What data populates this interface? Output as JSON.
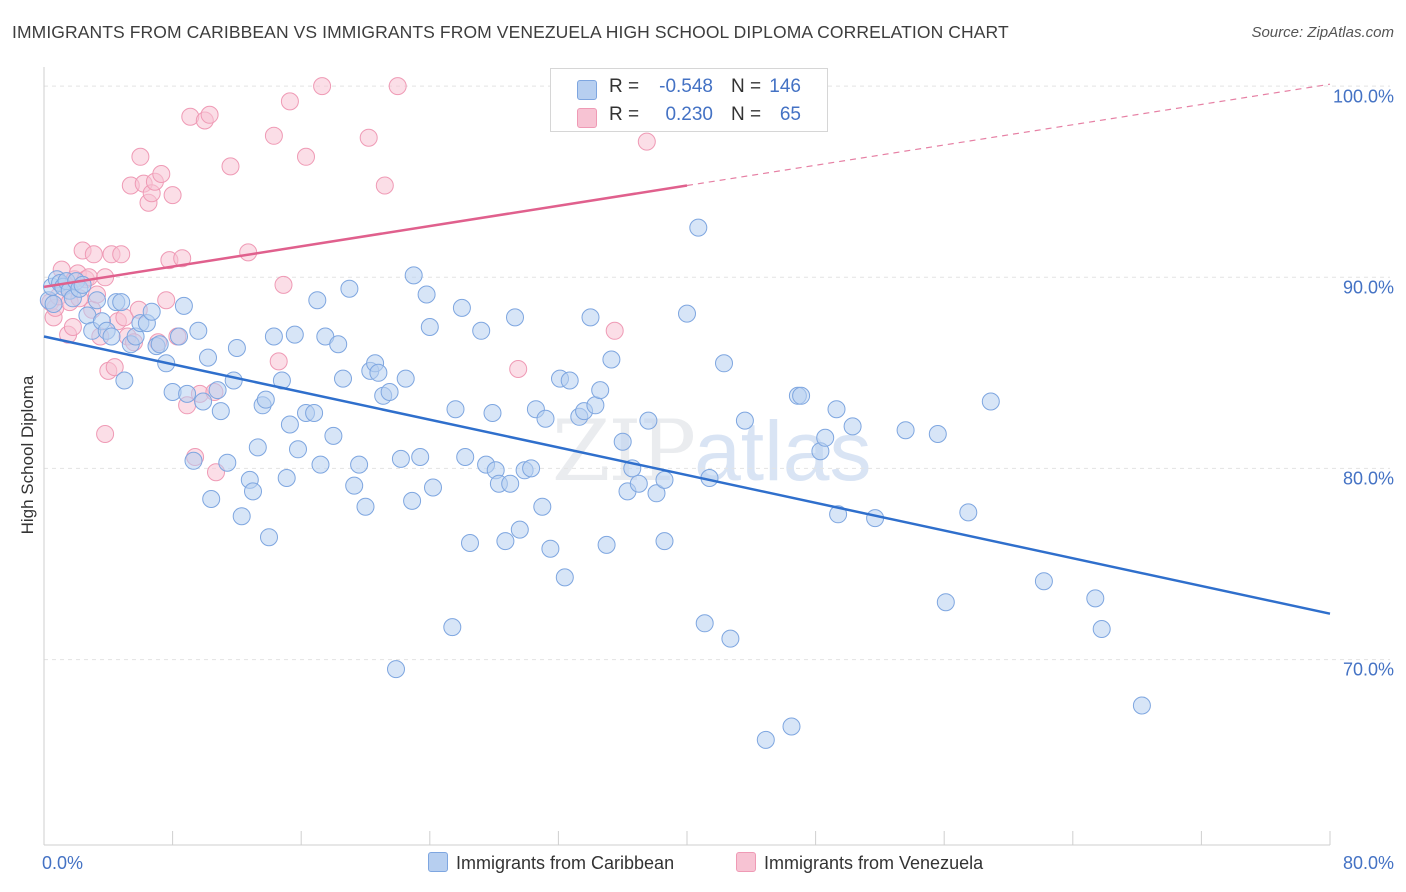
{
  "title": "IMMIGRANTS FROM CARIBBEAN VS IMMIGRANTS FROM VENEZUELA HIGH SCHOOL DIPLOMA CORRELATION CHART",
  "source": "Source: ZipAtlas.com",
  "watermark": {
    "zip": "ZIP",
    "atlas": "atlas"
  },
  "legend": {
    "rows": [
      {
        "r_label": "R =",
        "r_value": "-0.548",
        "n_label": "N =",
        "n_value": "146"
      },
      {
        "r_label": "R =",
        "r_value": "0.230",
        "n_label": "N =",
        "n_value": "65"
      }
    ]
  },
  "colors": {
    "caribbean_fill": "#b7cff0",
    "caribbean_stroke": "#7ea6e0",
    "caribbean_line": "#2f6fcc",
    "venezuela_fill": "#f7c3d3",
    "venezuela_stroke": "#ef9ab5",
    "venezuela_line": "#e0608d",
    "tick_text": "#4472c4",
    "grid": "#e3e3e3"
  },
  "chart_data": {
    "type": "scatter",
    "title": "IMMIGRANTS FROM CARIBBEAN VS IMMIGRANTS FROM VENEZUELA HIGH SCHOOL DIPLOMA CORRELATION CHART",
    "xlabel": "",
    "ylabel": "High School Diploma",
    "xlim": [
      0,
      80
    ],
    "ylim": [
      60.3,
      101
    ],
    "x_tick_labels": {
      "left": "0.0%",
      "right": "80.0%"
    },
    "y_ticks": [
      {
        "value": 100,
        "label": "100.0%"
      },
      {
        "value": 90,
        "label": "90.0%"
      },
      {
        "value": 80,
        "label": "80.0%"
      },
      {
        "value": 70,
        "label": "70.0%"
      }
    ],
    "grid": true,
    "legend_position": "top-center",
    "series": [
      {
        "name": "Immigrants from Caribbean",
        "R": -0.548,
        "N": 146,
        "trend": {
          "x": [
            0,
            80
          ],
          "y": [
            86.9,
            72.4
          ],
          "dashed_from": null
        },
        "points": [
          [
            0.3,
            88.8
          ],
          [
            0.5,
            89.5
          ],
          [
            0.6,
            88.6
          ],
          [
            0.8,
            89.9
          ],
          [
            1.0,
            89.7
          ],
          [
            1.2,
            89.5
          ],
          [
            1.4,
            89.8
          ],
          [
            1.6,
            89.3
          ],
          [
            1.8,
            88.9
          ],
          [
            2.0,
            89.8
          ],
          [
            2.2,
            89.4
          ],
          [
            2.4,
            89.6
          ],
          [
            2.7,
            88.0
          ],
          [
            3.0,
            87.2
          ],
          [
            3.3,
            88.8
          ],
          [
            3.6,
            87.7
          ],
          [
            3.9,
            87.2
          ],
          [
            4.2,
            86.9
          ],
          [
            4.5,
            88.7
          ],
          [
            4.8,
            88.7
          ],
          [
            5.0,
            84.6
          ],
          [
            5.4,
            86.5
          ],
          [
            5.7,
            86.9
          ],
          [
            6.0,
            87.6
          ],
          [
            6.4,
            87.6
          ],
          [
            6.7,
            88.2
          ],
          [
            7.0,
            86.4
          ],
          [
            7.2,
            86.5
          ],
          [
            7.6,
            85.5
          ],
          [
            8.0,
            84.0
          ],
          [
            8.4,
            86.9
          ],
          [
            8.7,
            88.5
          ],
          [
            8.9,
            83.9
          ],
          [
            9.3,
            80.4
          ],
          [
            9.6,
            87.2
          ],
          [
            9.9,
            83.5
          ],
          [
            10.2,
            85.8
          ],
          [
            10.4,
            78.4
          ],
          [
            10.8,
            84.1
          ],
          [
            11.0,
            83.0
          ],
          [
            11.4,
            80.3
          ],
          [
            11.8,
            84.6
          ],
          [
            12.0,
            86.3
          ],
          [
            12.3,
            77.5
          ],
          [
            12.8,
            79.4
          ],
          [
            13.0,
            78.8
          ],
          [
            13.3,
            81.1
          ],
          [
            13.6,
            83.3
          ],
          [
            13.8,
            83.6
          ],
          [
            14.0,
            76.4
          ],
          [
            14.3,
            86.9
          ],
          [
            14.8,
            84.6
          ],
          [
            15.1,
            79.5
          ],
          [
            15.3,
            82.3
          ],
          [
            15.6,
            87.0
          ],
          [
            15.8,
            81.0
          ],
          [
            16.3,
            82.9
          ],
          [
            16.8,
            82.9
          ],
          [
            17.0,
            88.8
          ],
          [
            17.2,
            80.2
          ],
          [
            17.5,
            86.9
          ],
          [
            18.0,
            81.7
          ],
          [
            18.3,
            86.5
          ],
          [
            18.6,
            84.7
          ],
          [
            19.0,
            89.4
          ],
          [
            19.3,
            79.1
          ],
          [
            19.6,
            80.2
          ],
          [
            20.0,
            78.0
          ],
          [
            20.3,
            85.1
          ],
          [
            20.6,
            85.5
          ],
          [
            20.8,
            85.0
          ],
          [
            21.1,
            83.8
          ],
          [
            21.5,
            84.0
          ],
          [
            21.9,
            69.5
          ],
          [
            22.2,
            80.5
          ],
          [
            22.5,
            84.7
          ],
          [
            22.9,
            78.3
          ],
          [
            23.0,
            90.1
          ],
          [
            23.4,
            80.6
          ],
          [
            23.8,
            89.1
          ],
          [
            24.0,
            87.4
          ],
          [
            24.2,
            79.0
          ],
          [
            25.4,
            71.7
          ],
          [
            25.6,
            83.1
          ],
          [
            26.0,
            88.4
          ],
          [
            26.2,
            80.6
          ],
          [
            26.5,
            76.1
          ],
          [
            27.2,
            87.2
          ],
          [
            27.5,
            80.2
          ],
          [
            27.9,
            82.9
          ],
          [
            28.1,
            79.9
          ],
          [
            28.3,
            79.2
          ],
          [
            28.7,
            76.2
          ],
          [
            29.0,
            79.2
          ],
          [
            29.3,
            87.9
          ],
          [
            29.6,
            76.8
          ],
          [
            29.9,
            79.9
          ],
          [
            30.3,
            80.0
          ],
          [
            30.6,
            83.1
          ],
          [
            31.0,
            78.0
          ],
          [
            31.2,
            82.6
          ],
          [
            31.5,
            75.8
          ],
          [
            32.1,
            84.7
          ],
          [
            32.4,
            74.3
          ],
          [
            32.7,
            84.6
          ],
          [
            33.3,
            82.7
          ],
          [
            33.6,
            83.0
          ],
          [
            34.0,
            87.9
          ],
          [
            34.3,
            83.3
          ],
          [
            34.6,
            84.1
          ],
          [
            35.0,
            76.0
          ],
          [
            35.3,
            85.7
          ],
          [
            36.0,
            81.4
          ],
          [
            36.3,
            78.8
          ],
          [
            36.6,
            80.0
          ],
          [
            37.0,
            79.2
          ],
          [
            37.6,
            82.5
          ],
          [
            38.1,
            78.7
          ],
          [
            38.6,
            76.2
          ],
          [
            38.6,
            79.4
          ],
          [
            40.0,
            88.1
          ],
          [
            40.7,
            92.6
          ],
          [
            41.1,
            71.9
          ],
          [
            41.4,
            79.5
          ],
          [
            42.3,
            85.5
          ],
          [
            42.7,
            71.1
          ],
          [
            43.6,
            82.5
          ],
          [
            44.9,
            65.8
          ],
          [
            46.5,
            66.5
          ],
          [
            46.9,
            83.8
          ],
          [
            47.1,
            83.8
          ],
          [
            48.3,
            80.9
          ],
          [
            48.6,
            81.6
          ],
          [
            49.3,
            83.1
          ],
          [
            49.4,
            77.6
          ],
          [
            50.3,
            82.2
          ],
          [
            51.7,
            77.4
          ],
          [
            53.6,
            82.0
          ],
          [
            55.6,
            81.8
          ],
          [
            56.1,
            73.0
          ],
          [
            57.5,
            77.7
          ],
          [
            58.9,
            83.5
          ],
          [
            62.2,
            74.1
          ],
          [
            65.4,
            73.2
          ],
          [
            65.8,
            71.6
          ],
          [
            68.3,
            67.6
          ]
        ]
      },
      {
        "name": "Immigrants from Venezuela",
        "R": 0.23,
        "N": 65,
        "trend": {
          "x": [
            0,
            80
          ],
          "y": [
            89.5,
            100.1
          ],
          "dashed_from": 40
        },
        "points": [
          [
            0.4,
            88.7
          ],
          [
            0.6,
            87.9
          ],
          [
            0.7,
            88.4
          ],
          [
            0.9,
            89.0
          ],
          [
            1.1,
            90.4
          ],
          [
            1.3,
            89.6
          ],
          [
            1.5,
            87.0
          ],
          [
            1.6,
            88.7
          ],
          [
            1.8,
            87.4
          ],
          [
            1.9,
            89.9
          ],
          [
            2.1,
            90.2
          ],
          [
            2.2,
            88.9
          ],
          [
            2.4,
            91.4
          ],
          [
            2.6,
            89.9
          ],
          [
            2.8,
            90.0
          ],
          [
            3.0,
            88.3
          ],
          [
            3.1,
            91.2
          ],
          [
            3.3,
            89.1
          ],
          [
            3.5,
            86.9
          ],
          [
            3.8,
            90.0
          ],
          [
            3.8,
            81.8
          ],
          [
            4.0,
            85.1
          ],
          [
            4.2,
            91.2
          ],
          [
            4.4,
            85.3
          ],
          [
            4.6,
            87.7
          ],
          [
            4.8,
            91.2
          ],
          [
            5.0,
            87.9
          ],
          [
            5.2,
            86.9
          ],
          [
            5.4,
            94.8
          ],
          [
            5.6,
            86.6
          ],
          [
            5.9,
            88.3
          ],
          [
            6.0,
            96.3
          ],
          [
            6.2,
            94.9
          ],
          [
            6.5,
            93.9
          ],
          [
            6.7,
            94.4
          ],
          [
            6.9,
            95.0
          ],
          [
            7.1,
            86.6
          ],
          [
            7.3,
            95.4
          ],
          [
            7.6,
            88.8
          ],
          [
            7.8,
            90.9
          ],
          [
            8.0,
            94.3
          ],
          [
            8.3,
            86.9
          ],
          [
            8.6,
            91.0
          ],
          [
            8.9,
            83.3
          ],
          [
            9.1,
            98.4
          ],
          [
            9.4,
            80.6
          ],
          [
            9.7,
            83.9
          ],
          [
            10.0,
            98.2
          ],
          [
            10.3,
            98.5
          ],
          [
            10.6,
            84.0
          ],
          [
            10.7,
            79.8
          ],
          [
            11.6,
            95.8
          ],
          [
            12.7,
            91.3
          ],
          [
            14.3,
            97.4
          ],
          [
            14.6,
            85.6
          ],
          [
            14.9,
            89.6
          ],
          [
            15.3,
            99.2
          ],
          [
            16.3,
            96.3
          ],
          [
            17.3,
            100.0
          ],
          [
            20.2,
            97.3
          ],
          [
            21.2,
            94.8
          ],
          [
            22.0,
            100.0
          ],
          [
            29.5,
            85.2
          ],
          [
            35.5,
            87.2
          ],
          [
            37.5,
            97.1
          ]
        ]
      }
    ]
  }
}
